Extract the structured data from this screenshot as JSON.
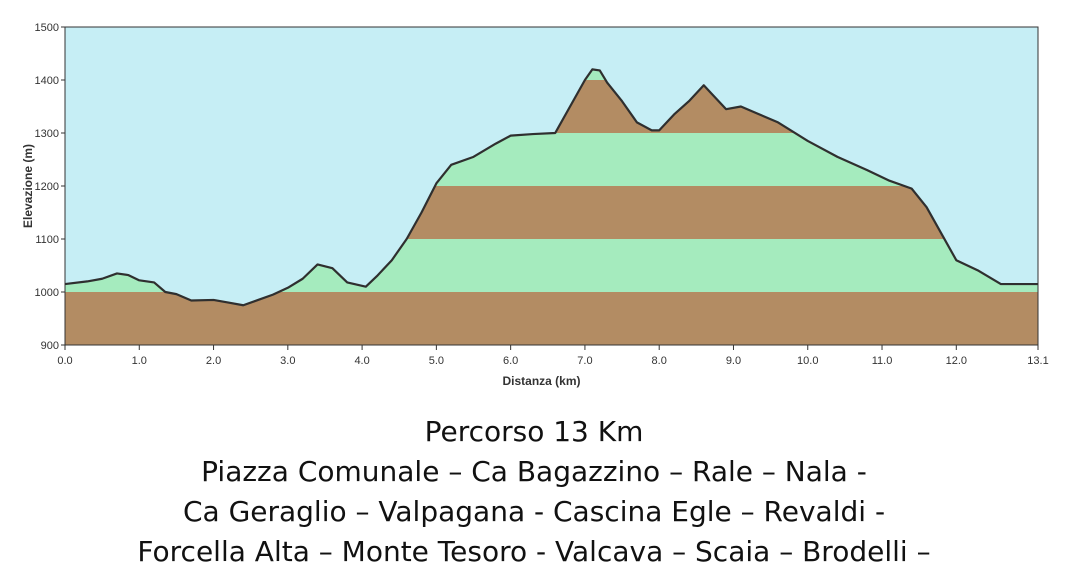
{
  "chart_data": {
    "type": "area",
    "title": "",
    "xlabel": "Distanza (km)",
    "ylabel": "Elevazione (m)",
    "xlim": [
      0,
      13.1
    ],
    "ylim": [
      900,
      1500
    ],
    "x_ticks": [
      0.0,
      1.0,
      2.0,
      3.0,
      4.0,
      5.0,
      6.0,
      7.0,
      8.0,
      9.0,
      10.0,
      11.0,
      12.0,
      13.1
    ],
    "y_ticks": [
      900,
      1000,
      1100,
      1200,
      1300,
      1400,
      1500
    ],
    "x_tick_format": 1,
    "grid": false,
    "legend": "none",
    "band_size": 100,
    "colors": {
      "sky": "#c6eef5",
      "band_green": "#a5ebbe",
      "band_brown": "#b38c63",
      "outline": "#2f2f2f"
    },
    "series": [
      {
        "x": [
          0.0,
          0.3,
          0.5,
          0.7,
          0.85,
          1.0,
          1.2,
          1.35,
          1.5,
          1.7,
          2.0,
          2.2,
          2.4,
          2.6,
          2.8,
          3.0,
          3.2,
          3.4,
          3.6,
          3.8,
          4.05,
          4.2,
          4.4,
          4.6,
          4.8,
          5.0,
          5.2,
          5.5,
          5.8,
          6.0,
          6.3,
          6.6,
          6.8,
          7.0,
          7.1,
          7.2,
          7.3,
          7.5,
          7.7,
          7.9,
          8.0,
          8.2,
          8.4,
          8.6,
          8.7,
          8.9,
          9.1,
          9.3,
          9.6,
          10.0,
          10.4,
          10.8,
          11.1,
          11.4,
          11.6,
          11.8,
          12.0,
          12.3,
          12.6,
          12.9,
          13.1
        ],
        "y": [
          1015,
          1020,
          1025,
          1035,
          1032,
          1022,
          1018,
          1000,
          996,
          984,
          985,
          980,
          975,
          985,
          995,
          1008,
          1025,
          1052,
          1045,
          1018,
          1010,
          1030,
          1060,
          1100,
          1150,
          1205,
          1240,
          1255,
          1280,
          1295,
          1298,
          1300,
          1350,
          1400,
          1420,
          1418,
          1395,
          1360,
          1320,
          1305,
          1305,
          1335,
          1360,
          1390,
          1375,
          1345,
          1350,
          1338,
          1320,
          1285,
          1255,
          1230,
          1210,
          1195,
          1160,
          1110,
          1060,
          1040,
          1015,
          1015,
          1015
        ]
      }
    ]
  },
  "caption": {
    "line1": "Percorso 13 Km",
    "line2": "Piazza Comunale – Ca Bagazzino – Rale – Nala -",
    "line3": "Ca Geraglio – Valpagana - Cascina Egle – Revaldi -",
    "line4": "Forcella Alta – Monte Tesoro - Valcava – Scaia – Brodelli –"
  }
}
